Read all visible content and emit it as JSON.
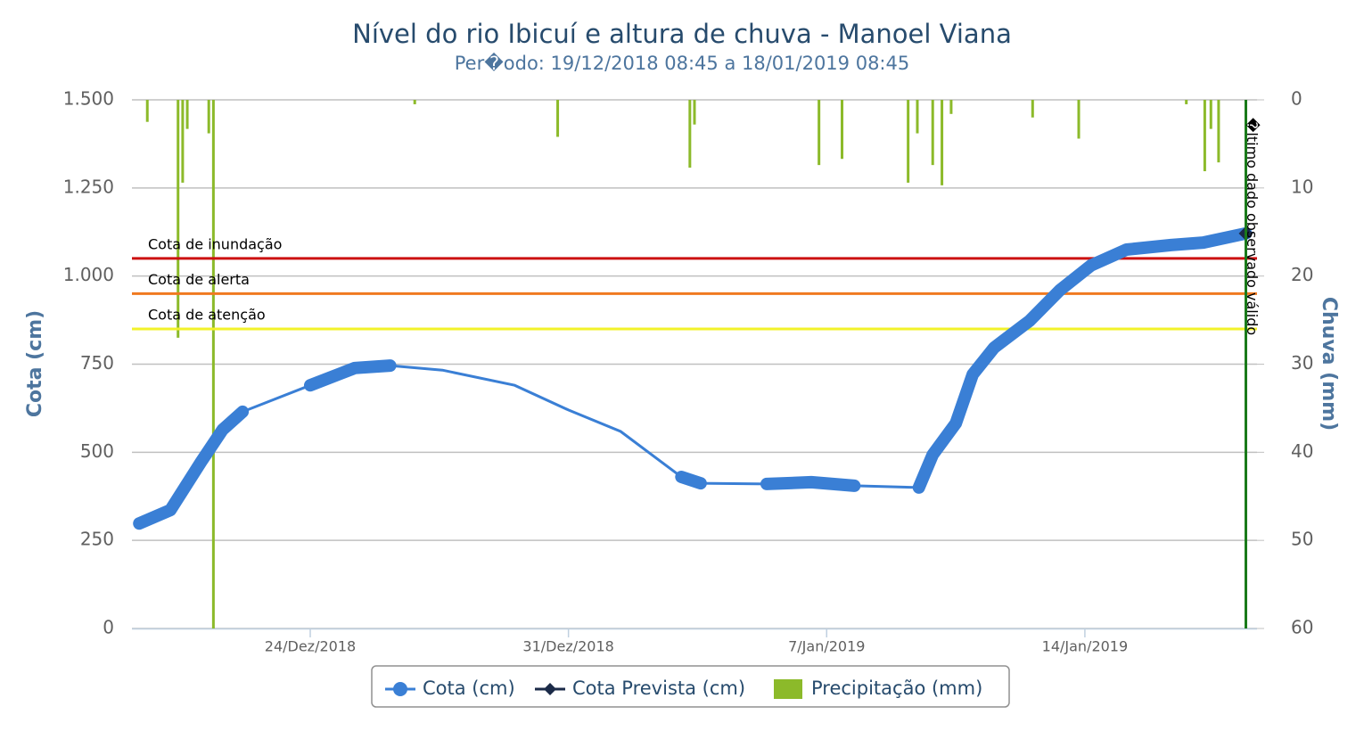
{
  "chart_data": {
    "type": "combo",
    "title": "Nível do rio Ibicuí e altura de chuva - Manoel Viana",
    "subtitle": "Per�odo: 19/12/2018 08:45 a 18/01/2019 08:45",
    "y_label": "Cota (cm)",
    "y2_label": "Chuva (mm)",
    "xlim": [
      "2018-12-19T04:00",
      "2019-01-18T16:00"
    ],
    "xticks": [
      {
        "value": "2018-12-24",
        "label": "24/Dez/2018"
      },
      {
        "value": "2018-12-31",
        "label": "31/Dez/2018"
      },
      {
        "value": "2019-01-07",
        "label": "7/Jan/2019"
      },
      {
        "value": "2019-01-14",
        "label": "14/Jan/2019"
      }
    ],
    "ylim": [
      0,
      1500
    ],
    "yticks": [
      0,
      250,
      500,
      750,
      {
        "value": 1000,
        "label": "1.000"
      },
      {
        "value": 1250,
        "label": "1.250"
      },
      {
        "value": 1500,
        "label": "1.500"
      }
    ],
    "y2lim": [
      60,
      0
    ],
    "y2ticks": [
      0,
      10,
      20,
      30,
      40,
      50,
      60
    ],
    "grid": true,
    "series": [
      {
        "name": "Cota (cm)",
        "type": "line",
        "color": "#3a7fd5",
        "x": [
          "2018-12-19T08:45",
          "2018-12-20T05:00",
          "2018-12-21T01:00",
          "2018-12-21T15:00",
          "2018-12-22T04:00",
          "2018-12-24T00:00",
          "2018-12-25T05:00",
          "2018-12-26T04:00",
          "2018-12-27T14:00",
          "2018-12-29T13:00",
          "2018-12-31T00:00",
          "2019-01-01T10:00",
          "2019-01-03T01:30",
          "2019-01-03T14:00",
          "2019-01-05T09:00",
          "2019-01-06T14:00",
          "2019-01-07T18:00",
          "2019-01-09T12:00",
          "2019-01-09T21:00",
          "2019-01-10T12:00",
          "2019-01-10T23:00",
          "2019-01-11T13:00",
          "2019-01-12T12:00",
          "2019-01-13T08:00",
          "2019-01-14T04:00",
          "2019-01-15T03:00",
          "2019-01-16T08:00",
          "2019-01-17T05:00",
          "2019-01-18T08:45"
        ],
        "values": [
          298,
          336,
          473,
          564,
          615,
          690,
          739,
          746,
          733,
          690,
          620,
          559,
          430,
          412,
          410,
          415,
          405,
          400,
          493,
          582,
          721,
          797,
          873,
          961,
          1030,
          1075,
          1088,
          1095,
          1121
        ]
      },
      {
        "name": "Cota Prevista (cm)",
        "type": "line",
        "color": "#1b2a48",
        "x": [
          "2019-01-18T08:45"
        ],
        "values": [
          1121
        ]
      },
      {
        "name": "Precipitação (mm)",
        "type": "bar",
        "axis": "y2",
        "color": "#8cba2a",
        "x": [
          "2018-12-19T14:00",
          "2018-12-20T10:00",
          "2018-12-20T13:00",
          "2018-12-20T16:00",
          "2018-12-21T06:00",
          "2018-12-21T09:00",
          "2018-12-26T20:00",
          "2018-12-30T17:00",
          "2019-01-03T07:00",
          "2019-01-03T10:00",
          "2019-01-06T19:00",
          "2019-01-07T10:00",
          "2019-01-09T05:00",
          "2019-01-09T11:00",
          "2019-01-09T21:00",
          "2019-01-10T03:00",
          "2019-01-10T09:00",
          "2019-01-12T14:00",
          "2019-01-13T20:00",
          "2019-01-16T18:00",
          "2019-01-17T06:00",
          "2019-01-17T10:00",
          "2019-01-17T15:00"
        ],
        "values": [
          2.5,
          27,
          9.4,
          3.3,
          3.8,
          60,
          0.5,
          4.2,
          7.7,
          2.8,
          7.4,
          6.7,
          9.4,
          3.8,
          7.4,
          9.7,
          1.6,
          2,
          4.4,
          0.5,
          8.1,
          3.3,
          7.1
        ]
      }
    ],
    "plot_lines": [
      {
        "label": "Cota de inundação",
        "value": 1050,
        "color": "#cc1111"
      },
      {
        "label": "Cota de alerta",
        "value": 950,
        "color": "#f07a20"
      },
      {
        "label": "Cota de atenção",
        "value": 850,
        "color": "#f2f22a"
      }
    ],
    "vertical_line": {
      "x": "2019-01-18T08:45",
      "label": "�ltimo dado observado válido",
      "color": "#1a7a1a"
    },
    "legend": "bottom"
  }
}
